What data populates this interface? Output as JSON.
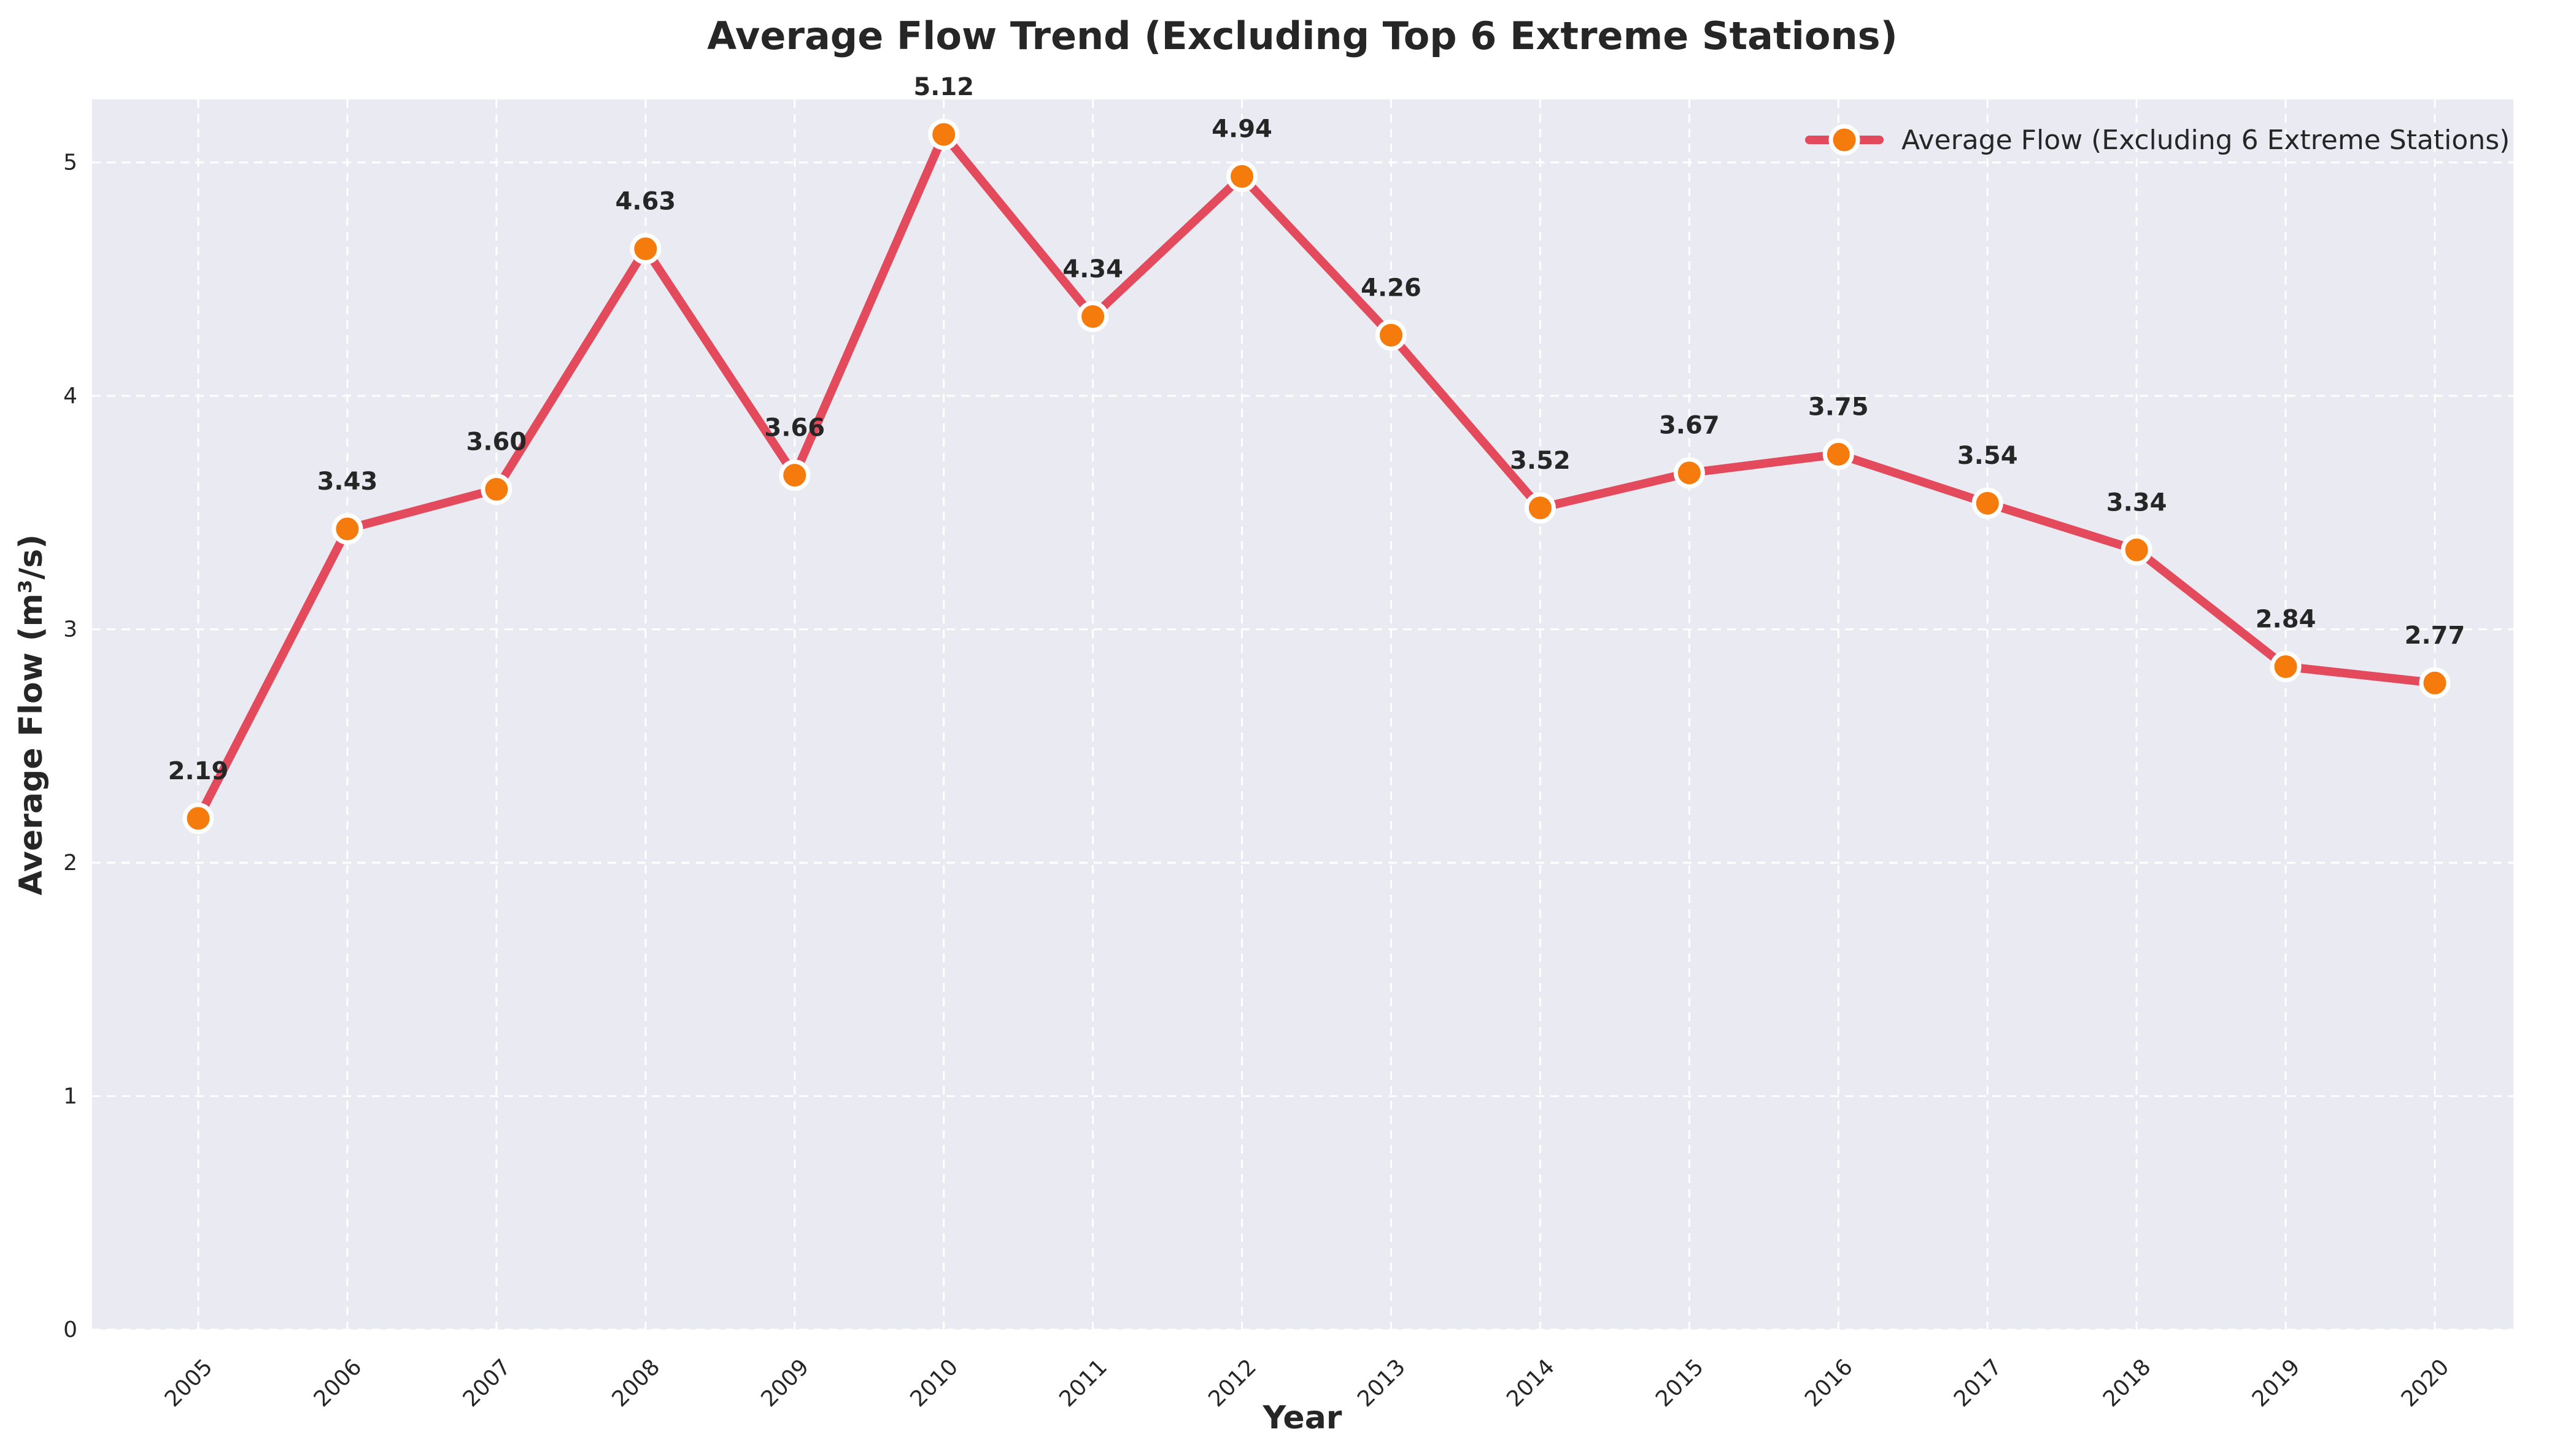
{
  "chart_data": {
    "type": "line",
    "title": "Average Flow Trend (Excluding Top 6 Extreme Stations)",
    "xlabel": "Year",
    "ylabel": "Average Flow (m³/s)",
    "x": [
      "2005",
      "2006",
      "2007",
      "2008",
      "2009",
      "2010",
      "2011",
      "2012",
      "2013",
      "2014",
      "2015",
      "2016",
      "2017",
      "2018",
      "2019",
      "2020"
    ],
    "series": [
      {
        "name": "Average Flow (Excluding 6 Extreme Stations)",
        "values": [
          2.19,
          3.43,
          3.6,
          4.63,
          3.66,
          5.12,
          4.34,
          4.94,
          4.26,
          3.52,
          3.67,
          3.75,
          3.54,
          3.34,
          2.84,
          2.77
        ],
        "data_labels": [
          "2.19",
          "3.43",
          "3.60",
          "4.63",
          "3.66",
          "5.12",
          "4.34",
          "4.94",
          "4.26",
          "3.52",
          "3.67",
          "3.75",
          "3.54",
          "3.34",
          "2.84",
          "2.77"
        ],
        "line_color": "#e34a5c",
        "marker_color": "#f57c0c",
        "marker_edge_color": "#ffffff"
      }
    ],
    "yticks": [
      0,
      1,
      2,
      3,
      4,
      5
    ],
    "ylim": [
      0,
      5.27
    ],
    "grid": true,
    "grid_style": "dashed",
    "legend_position": "top-right",
    "plot_background": "#eaeaf2",
    "page_background": "#ffffff"
  }
}
